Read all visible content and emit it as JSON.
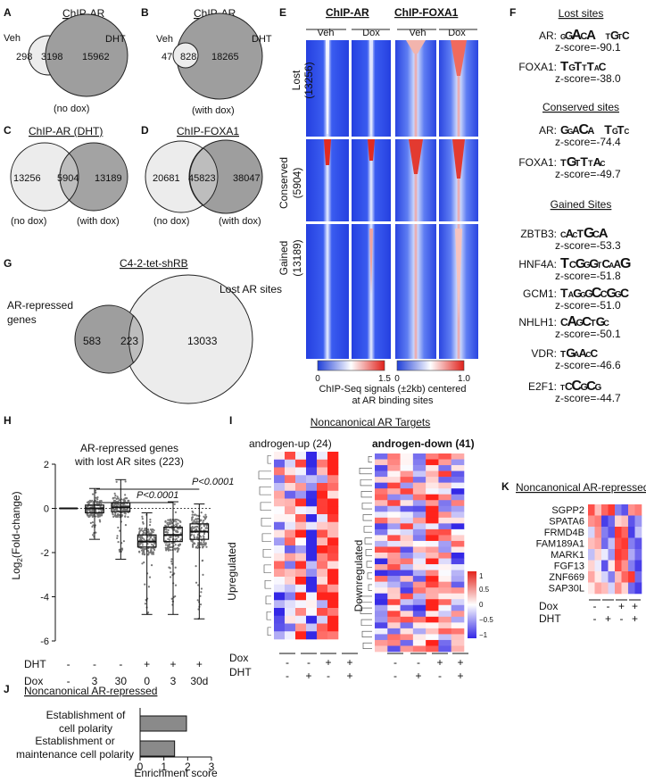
{
  "figure": {
    "panelA": {
      "letter": "A",
      "title": "ChIP-AR",
      "left_label": "Veh",
      "right_label": "DHT",
      "only_left": "298",
      "overlap": "3198",
      "only_right": "15962",
      "caption": "(no dox)"
    },
    "panelB": {
      "letter": "B",
      "title": "ChIP-AR",
      "left_label": "Veh",
      "right_label": "DHT",
      "only_left": "47",
      "overlap": "828",
      "only_right": "18265",
      "caption": "(with dox)"
    },
    "panelC": {
      "letter": "C",
      "title": "ChIP-AR (DHT)",
      "only_left": "13256",
      "overlap": "5904",
      "only_right": "13189",
      "left_caption": "(no dox)",
      "right_caption": "(with dox)"
    },
    "panelD": {
      "letter": "D",
      "title": "ChIP-FOXA1",
      "only_left": "20681",
      "overlap": "45823",
      "only_right": "38047",
      "left_caption": "(no dox)",
      "right_caption": "(with dox)"
    },
    "panelG": {
      "letter": "G",
      "title": "C4-2-tet-shRB",
      "left_label": "AR-repressed genes",
      "left_label_line1": "AR-repressed",
      "left_label_line2": "genes",
      "right_label": "Lost AR sites",
      "only_left": "583",
      "overlap": "223",
      "only_right": "13033"
    },
    "panelE": {
      "letter": "E",
      "groups": [
        {
          "label": "ChIP-AR",
          "cols": [
            "Veh",
            "Dox"
          ]
        },
        {
          "label": "ChIP-FOXA1",
          "cols": [
            "Veh",
            "Dox"
          ]
        }
      ],
      "rows": [
        {
          "name": "Lost",
          "count": "(13256)"
        },
        {
          "name": "Conserved",
          "count": "(5904)"
        },
        {
          "name": "Gained",
          "count": "(13189)"
        }
      ],
      "scale1": {
        "min": "0",
        "max": "1.5"
      },
      "scale2": {
        "min": "0",
        "max": "1.0"
      },
      "caption_line1": "ChIP-Seq signals (±2kb) centered",
      "caption_line2": "at AR binding sites"
    },
    "panelF": {
      "letter": "F",
      "sections": [
        {
          "title": "Lost sites",
          "motifs": [
            {
              "name": "AR:",
              "z": "z-score=-90.1",
              "seq": "GGACA  TGTC"
            },
            {
              "name": "FOXA1:",
              "z": "z-score=-38.0",
              "seq": "TGTTTAC"
            }
          ]
        },
        {
          "title": "Conserved sites",
          "motifs": [
            {
              "name": "AR:",
              "z": "z-score=-74.4",
              "seq": "GGACA  TGTC"
            },
            {
              "name": "FOXA1:",
              "z": "z-score=-49.7",
              "seq": "TGTTTAC"
            }
          ]
        },
        {
          "title": "Gained Sites",
          "motifs": [
            {
              "name": "ZBTB3:",
              "z": "z-score=-53.3",
              "seq": "CACTGCA"
            },
            {
              "name": "HNF4A:",
              "z": "z-score=-51.8",
              "seq": "TCGGGTCAAG"
            },
            {
              "name": "GCM1:",
              "z": "z-score=-51.0",
              "seq": "TAGGGCCGGC"
            },
            {
              "name": "NHLH1:",
              "z": "z-score=-50.1",
              "seq": "CAGCTGC"
            },
            {
              "name": "VDR:",
              "z": "z-score=-46.6",
              "seq": "TGAACC"
            },
            {
              "name": "E2F1:",
              "z": "z-score=-44.7",
              "seq": "TCCGCG"
            }
          ]
        }
      ]
    },
    "panelH": {
      "letter": "H",
      "title_line1": "AR-repressed genes",
      "title_line2": "with lost AR sites (223)",
      "pvals": [
        "P<0.0001",
        "P<0.0001"
      ],
      "row_labels": [
        "DHT",
        "Dox"
      ],
      "dht": [
        "-",
        "-",
        "-",
        "+",
        "+",
        "+"
      ],
      "dox": [
        "-",
        "3",
        "30",
        "0",
        "3",
        "30d"
      ]
    },
    "panelI": {
      "letter": "I",
      "title": "Noncanonical AR Targets",
      "left_title": "androgen-up (24)",
      "right_title": "androgen-down (41)",
      "left_side": "Upregulated",
      "right_side": "Downregulated",
      "row_labels": [
        "Dox",
        "DHT"
      ],
      "dox": [
        "-",
        "-",
        "+",
        "+"
      ],
      "dht": [
        "-",
        "+",
        "-",
        "+"
      ],
      "legend": [
        "1",
        "0.5",
        "0",
        "−0.5",
        "−1"
      ]
    },
    "panelK": {
      "letter": "K",
      "title": "Noncanonical AR-repressed",
      "genes": [
        "SGPP2",
        "SPATA6",
        "FRMD4B",
        "FAM189A1",
        "MARK1",
        "FGF13",
        "ZNF669",
        "SAP30L"
      ],
      "row_labels": [
        "Dox",
        "DHT"
      ],
      "dox": [
        "-",
        "-",
        "+",
        "+"
      ],
      "dht": [
        "-",
        "+",
        "-",
        "+"
      ]
    },
    "panelJ": {
      "letter": "J",
      "title": "Noncanonical AR-repressed",
      "xlabel": "Enrichment score",
      "bar1_line1": "Establishment of",
      "bar1_line2": "cell polarity",
      "bar2_line1": "Establishment or",
      "bar2_line2": "maintenance cell polarity"
    }
  },
  "chart_data": [
    {
      "type": "scatter",
      "panel": "H",
      "ylabel": "Log2(Fold-change)",
      "ylim": [
        -6,
        2
      ],
      "yticks": [
        "2",
        "0",
        "-2",
        "-4",
        "-6"
      ],
      "categories": [
        "DHT- Dox-",
        "DHT- Dox3",
        "DHT- Dox30",
        "DHT+ Dox0",
        "DHT+ Dox3",
        "DHT+ Dox30d"
      ],
      "medians": [
        0.0,
        0.0,
        0.05,
        -1.5,
        -1.2,
        -1.05
      ],
      "q1": [
        0.0,
        -0.2,
        -0.15,
        -1.75,
        -1.5,
        -1.4
      ],
      "q3": [
        0.0,
        0.15,
        0.25,
        -1.2,
        -0.85,
        -0.7
      ],
      "whisker_low": [
        0.0,
        -1.4,
        -2.3,
        -4.8,
        -4.8,
        -5.0
      ],
      "whisker_high": [
        0.0,
        0.9,
        1.3,
        -0.2,
        0.3,
        0.2
      ]
    },
    {
      "type": "bar",
      "panel": "J",
      "categories": [
        "Establishment of cell polarity",
        "Establishment or maintenance cell polarity"
      ],
      "values": [
        1.95,
        1.45
      ],
      "xlabel": "Enrichment score",
      "xlim": [
        0,
        3
      ],
      "xticks": [
        "0",
        "1",
        "2",
        "3"
      ]
    },
    {
      "type": "heatmap",
      "panel": "K",
      "rows": [
        "SGPP2",
        "SPATA6",
        "FRMD4B",
        "FAM189A1",
        "MARK1",
        "FGF13",
        "ZNF669",
        "SAP30L"
      ],
      "columns": [
        "Dox- DHT- r1",
        "Dox- DHT- r2",
        "Dox- DHT+ r1",
        "Dox- DHT+ r2",
        "Dox+ DHT- r1",
        "Dox+ DHT- r2",
        "Dox+ DHT+ r1",
        "Dox+ DHT+ r2"
      ],
      "values": [
        [
          0.8,
          0.3,
          0.7,
          0.9,
          -0.6,
          -0.8,
          0.5,
          0.6
        ],
        [
          0.5,
          0.6,
          -0.9,
          -0.7,
          0.2,
          0.3,
          -0.8,
          -0.5
        ],
        [
          -0.2,
          0.5,
          -0.6,
          -0.8,
          0.9,
          0.7,
          -0.9,
          -0.3
        ],
        [
          0.3,
          0.4,
          -0.7,
          -0.3,
          0.8,
          0.9,
          -0.6,
          -0.8
        ],
        [
          -0.3,
          0.2,
          -0.1,
          -0.5,
          0.9,
          0.8,
          -0.4,
          -0.7
        ],
        [
          0.2,
          -0.1,
          -0.8,
          0.1,
          0.8,
          0.5,
          -0.6,
          -0.9
        ],
        [
          0.4,
          0.1,
          -0.2,
          -0.6,
          0.3,
          0.7,
          0.9,
          -0.7
        ],
        [
          0.1,
          0.4,
          0.3,
          -0.2,
          0.5,
          0.2,
          -0.7,
          -0.9
        ]
      ]
    }
  ]
}
